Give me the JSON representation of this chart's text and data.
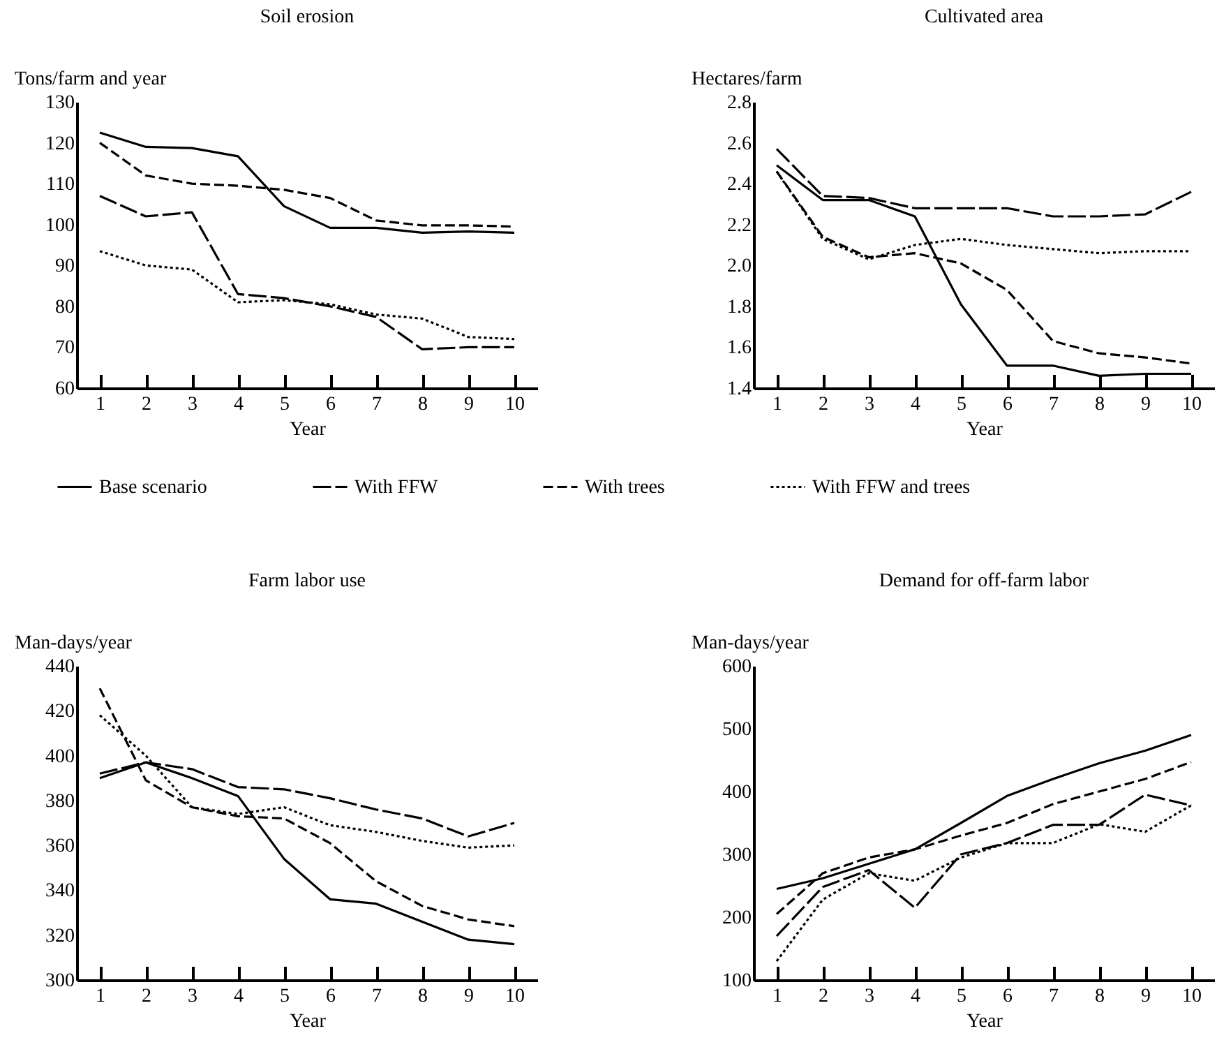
{
  "chart_data": [
    {
      "type": "line",
      "title": "Soil erosion",
      "ylabel": "Tons/farm and year",
      "xlabel": "Year",
      "categories": [
        "1",
        "2",
        "3",
        "4",
        "5",
        "6",
        "7",
        "8",
        "9",
        "10"
      ],
      "ylim": [
        60,
        130
      ],
      "yticks": [
        60,
        70,
        80,
        90,
        100,
        110,
        120,
        130
      ],
      "grid": false,
      "legend": "bottom",
      "series": [
        {
          "name": "Base scenario",
          "color": "#000000",
          "line_style": "solid",
          "values": [
            122.5,
            119,
            118.7,
            116.7,
            104.5,
            99.2,
            99.2,
            98,
            98.3,
            98
          ]
        },
        {
          "name": "With FFW",
          "color": "#000000",
          "line_style": "dashed",
          "values": [
            107,
            102,
            103,
            83,
            82,
            80,
            77.4,
            69.5,
            70,
            70
          ]
        },
        {
          "name": "With trees",
          "color": "#000000",
          "line_style": "dashed",
          "values": [
            120,
            112,
            110,
            109.5,
            108.5,
            106.5,
            101,
            99.8,
            99.8,
            99.5
          ]
        },
        {
          "name": "With FFW and trees",
          "color": "#000000",
          "line_style": "dotted",
          "values": [
            93.5,
            90,
            89,
            81,
            81.5,
            80.5,
            78,
            77,
            72.5,
            72
          ]
        }
      ]
    },
    {
      "type": "line",
      "title": "Cultivated area",
      "ylabel": "Hectares/farm",
      "xlabel": "Year",
      "categories": [
        "1",
        "2",
        "3",
        "4",
        "5",
        "6",
        "7",
        "8",
        "9",
        "10"
      ],
      "ylim": [
        1.4,
        2.8
      ],
      "yticks": [
        {
          "value": 1.4,
          "label": "1.4"
        },
        {
          "value": 1.6,
          "label": "1.6"
        },
        {
          "value": 1.8,
          "label": "1.8"
        },
        {
          "value": 2,
          "label": "2.0"
        },
        {
          "value": 2.2,
          "label": "2.2"
        },
        {
          "value": 2.4,
          "label": "2.4"
        },
        {
          "value": 2.6,
          "label": "2.6"
        },
        {
          "value": 2.8,
          "label": "2.8"
        }
      ],
      "grid": false,
      "series": [
        {
          "name": "Base scenario",
          "color": "#000000",
          "line_style": "solid",
          "values": [
            2.49,
            2.32,
            2.32,
            2.24,
            1.81,
            1.51,
            1.51,
            1.46,
            1.47,
            1.47
          ]
        },
        {
          "name": "With FFW",
          "color": "#000000",
          "line_style": "dashed",
          "values": [
            2.57,
            2.34,
            2.33,
            2.28,
            2.28,
            2.28,
            2.24,
            2.24,
            2.25,
            2.36
          ]
        },
        {
          "name": "With trees",
          "color": "#000000",
          "line_style": "dashed",
          "values": [
            2.46,
            2.14,
            2.04,
            2.06,
            2.01,
            1.88,
            1.63,
            1.57,
            1.55,
            1.52
          ]
        },
        {
          "name": "With FFW and trees",
          "color": "#000000",
          "line_style": "dotted",
          "values": [
            2.46,
            2.13,
            2.03,
            2.1,
            2.13,
            2.1,
            2.08,
            2.06,
            2.07,
            2.07
          ]
        }
      ]
    },
    {
      "type": "line",
      "title": "Farm labor use",
      "ylabel": "Man-days/year",
      "xlabel": "Year",
      "categories": [
        "1",
        "2",
        "3",
        "4",
        "5",
        "6",
        "7",
        "8",
        "9",
        "10"
      ],
      "ylim": [
        300,
        440
      ],
      "yticks": [
        300,
        320,
        340,
        360,
        380,
        400,
        420,
        440
      ],
      "grid": false,
      "series": [
        {
          "name": "Base scenario",
          "color": "#000000",
          "line_style": "solid",
          "values": [
            390,
            397,
            390,
            382,
            354,
            336,
            334,
            326,
            318,
            316
          ]
        },
        {
          "name": "With FFW",
          "color": "#000000",
          "line_style": "dashed",
          "values": [
            392,
            397,
            394,
            386,
            385,
            381,
            376,
            372,
            364,
            370
          ]
        },
        {
          "name": "With trees",
          "color": "#000000",
          "line_style": "dashed",
          "values": [
            430,
            389,
            377,
            373,
            372,
            361,
            344,
            333,
            327,
            324
          ]
        },
        {
          "name": "With FFW and trees",
          "color": "#000000",
          "line_style": "dotted",
          "values": [
            418,
            400,
            377,
            374,
            377,
            369,
            366,
            362,
            359,
            360
          ]
        }
      ]
    },
    {
      "type": "line",
      "title": "Demand for off-farm labor",
      "ylabel": "Man-days/year",
      "xlabel": "Year",
      "categories": [
        "1",
        "2",
        "3",
        "4",
        "5",
        "6",
        "7",
        "8",
        "9",
        "10"
      ],
      "ylim": [
        100,
        600
      ],
      "yticks": [
        100,
        200,
        300,
        400,
        500,
        600
      ],
      "grid": false,
      "series": [
        {
          "name": "Base scenario",
          "color": "#000000",
          "line_style": "solid",
          "values": [
            245,
            262,
            285,
            308,
            350,
            393,
            420,
            445,
            465,
            490
          ]
        },
        {
          "name": "With FFW",
          "color": "#000000",
          "line_style": "dashed",
          "values": [
            170,
            248,
            275,
            215,
            300,
            318,
            347,
            347,
            395,
            378
          ]
        },
        {
          "name": "With trees",
          "color": "#000000",
          "line_style": "dashed",
          "values": [
            205,
            270,
            295,
            308,
            330,
            350,
            380,
            400,
            420,
            447
          ]
        },
        {
          "name": "With FFW and trees",
          "color": "#000000",
          "line_style": "dotted",
          "values": [
            130,
            228,
            270,
            258,
            295,
            318,
            318,
            348,
            336,
            378
          ]
        }
      ]
    }
  ]
}
